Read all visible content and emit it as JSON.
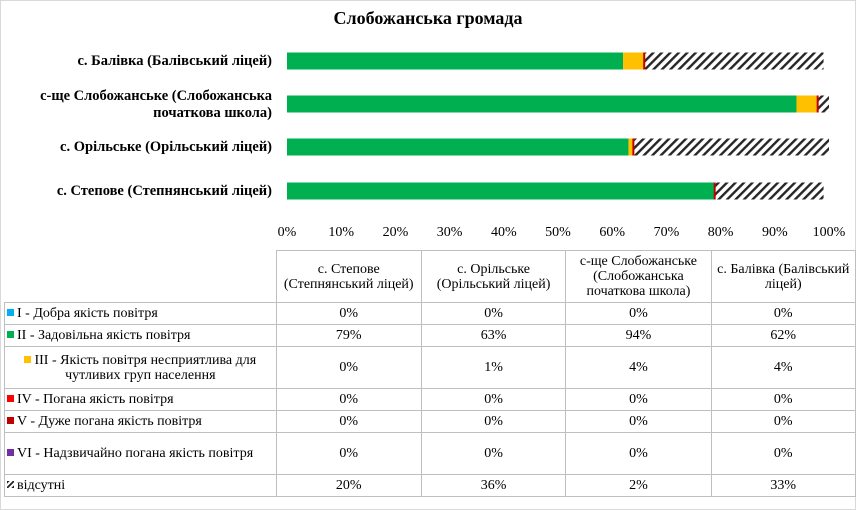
{
  "chart_data": {
    "type": "bar",
    "orientation": "horizontal",
    "stacked": "100%",
    "title": "Слобожанська громада",
    "categories": [
      "с. Балівка (Балівський ліцей)",
      "с-ще Слобожанське (Слобожанська початкова школа)",
      "с. Орільське  (Орільський  ліцей)",
      "с. Степове (Степнянський ліцей)"
    ],
    "table_headers": [
      "с. Степове (Степнянський ліцей)",
      "с. Орільське (Орільський ліцей)",
      "с-ще Слобожанське (Слобожанська початкова школа)",
      "с. Балівка (Балівський ліцей)"
    ],
    "xlim": [
      0,
      100
    ],
    "x_ticks": [
      "0%",
      "10%",
      "20%",
      "30%",
      "40%",
      "50%",
      "60%",
      "70%",
      "80%",
      "90%",
      "100%"
    ],
    "series": [
      {
        "name": "I - Добра якість  повітря",
        "color": "#00b0f0",
        "values": [
          0,
          0,
          0,
          0
        ],
        "labels": [
          "0%",
          "0%",
          "0%",
          "0%"
        ]
      },
      {
        "name": "II - Задовільна якість  повітря",
        "color": "#00b050",
        "values": [
          79,
          63,
          94,
          62
        ],
        "labels": [
          "79%",
          "63%",
          "94%",
          "62%"
        ]
      },
      {
        "name": "III - Якість повітря несприятлива для чутливих груп населення",
        "color": "#ffc000",
        "values": [
          0,
          1,
          4,
          4
        ],
        "labels": [
          "0%",
          "1%",
          "4%",
          "4%"
        ]
      },
      {
        "name": "IV - Погана якість  повітря",
        "color": "#ff0000",
        "values": [
          0,
          0,
          0,
          0
        ],
        "labels": [
          "0%",
          "0%",
          "0%",
          "0%"
        ]
      },
      {
        "name": "V - Дуже погана якість  повітря",
        "color": "#c00000",
        "values": [
          0,
          0,
          0,
          0
        ],
        "labels": [
          "0%",
          "0%",
          "0%",
          "0%"
        ]
      },
      {
        "name": "VI - Надзвичайно погана якість повітря",
        "color": "#7030a0",
        "values": [
          0,
          0,
          0,
          0
        ],
        "labels": [
          "0%",
          "0%",
          "0%",
          "0%"
        ]
      },
      {
        "name": "відсутні",
        "color": "hatched",
        "values": [
          20,
          36,
          2,
          33
        ],
        "labels": [
          "20%",
          "36%",
          "2%",
          "33%"
        ]
      }
    ],
    "legend": "table-below",
    "grid": false
  }
}
